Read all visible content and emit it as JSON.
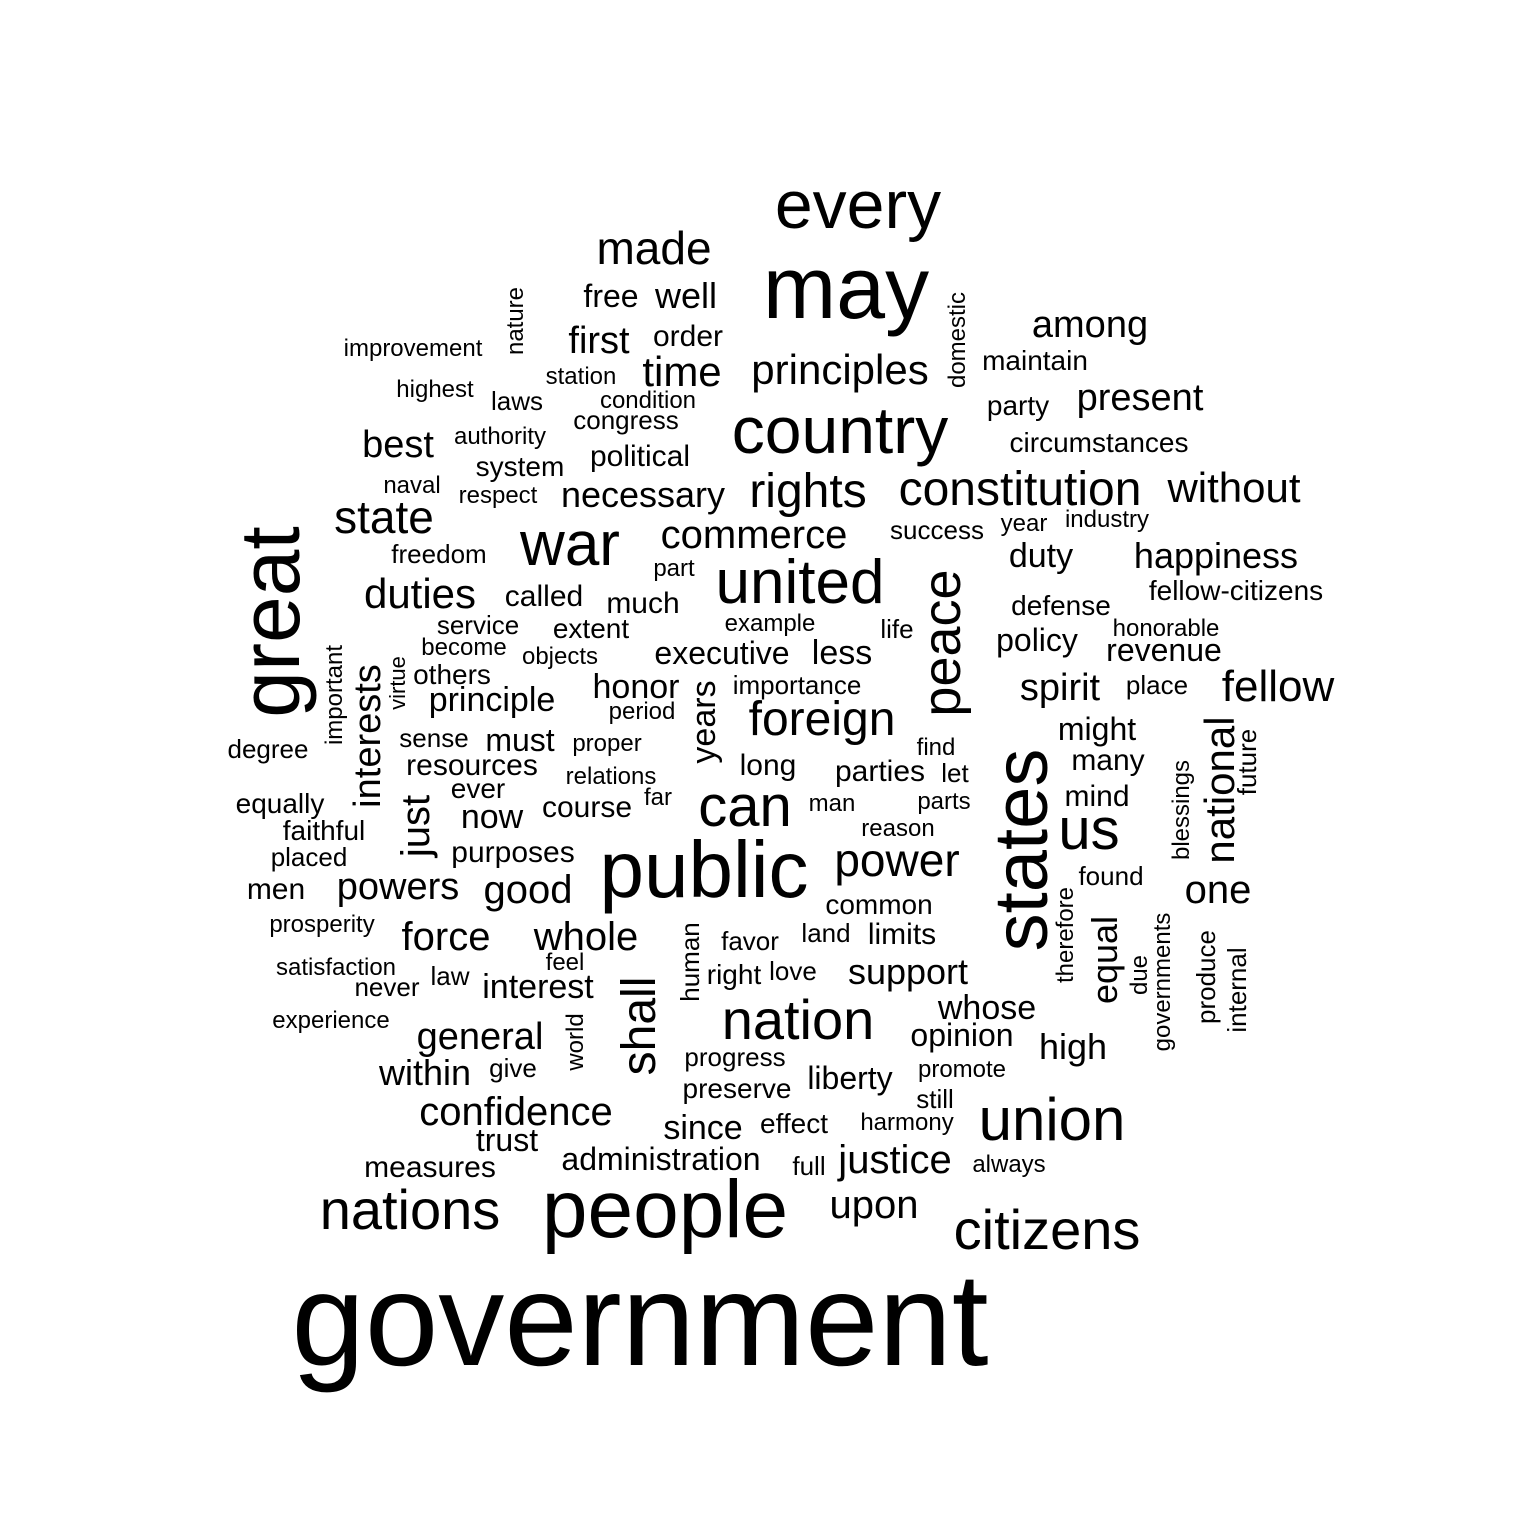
{
  "word_color": "#000000",
  "background": "#ffffff",
  "words": {
    "government": "government",
    "people": "people",
    "public": "public",
    "may": "may",
    "every": "every",
    "great": "great",
    "states": "states",
    "country": "country",
    "united": "united",
    "war": "war",
    "union": "union",
    "nation": "nation",
    "nations": "nations",
    "citizens": "citizens",
    "peace": "peace",
    "can": "can",
    "us": "us",
    "constitution": "constitution",
    "rights": "rights",
    "foreign": "foreign",
    "shall": "shall",
    "power": "power",
    "made": "made",
    "state": "state",
    "fellow": "fellow",
    "without": "without",
    "principles": "principles",
    "national": "national",
    "commerce": "commerce",
    "duties": "duties",
    "time": "time",
    "among": "among",
    "present": "present",
    "interests": "interests",
    "necessary": "necessary",
    "happiness": "happiness",
    "upon": "upon",
    "confidence": "confidence",
    "good": "good",
    "whole": "whole",
    "force": "force",
    "powers": "powers",
    "general": "general",
    "support": "support",
    "spirit": "spirit",
    "best": "best",
    "first": "first",
    "well": "well",
    "years": "years",
    "justice": "justice",
    "high": "high",
    "equal": "equal",
    "duty": "duty",
    "just": "just",
    "one": "one",
    "interest": "interest",
    "within": "within",
    "whose": "whose",
    "principle": "principle",
    "honor": "honor",
    "less": "less",
    "executive": "executive",
    "must": "must",
    "might": "might",
    "policy": "policy",
    "revenue": "revenue",
    "free": "free",
    "order": "order",
    "called": "called",
    "much": "much",
    "political": "political",
    "resources": "resources",
    "course": "course",
    "now": "now",
    "purposes": "purposes",
    "administration": "administration",
    "since": "since",
    "trust": "trust",
    "liberty": "liberty",
    "opinion": "opinion",
    "limits": "limits",
    "parties": "parties",
    "many": "many",
    "mind": "mind",
    "long": "long",
    "shall_alt": "",
    "measures": "measures",
    "improvement": "improvement",
    "nature": "nature",
    "station": "station",
    "highest": "highest",
    "laws": "laws",
    "condition": "condition",
    "congress": "congress",
    "domestic": "domestic",
    "maintain": "maintain",
    "party": "party",
    "circumstances": "circumstances",
    "authority": "authority",
    "system": "system",
    "naval": "naval",
    "respect": "respect",
    "success": "success",
    "year": "year",
    "industry": "industry",
    "freedom": "freedom",
    "part": "part",
    "fellow_citizens": "fellow-citizens",
    "defense": "defense",
    "honorable": "honorable",
    "service": "service",
    "extent": "extent",
    "example": "example",
    "life": "life",
    "become": "become",
    "objects": "objects",
    "important": "important",
    "virtue": "virtue",
    "others": "others",
    "importance": "importance",
    "place": "place",
    "period": "period",
    "degree": "degree",
    "sense": "sense",
    "proper": "proper",
    "find": "find",
    "future": "future",
    "relations": "relations",
    "let": "let",
    "ever": "ever",
    "far": "far",
    "equally": "equally",
    "man": "man",
    "parts": "parts",
    "blessings": "blessings",
    "faithful": "faithful",
    "reason": "reason",
    "placed": "placed",
    "men": "men",
    "found": "found",
    "therefore": "therefore",
    "common": "common",
    "prosperity": "prosperity",
    "human": "human",
    "favor": "favor",
    "land": "land",
    "governments": "governments",
    "produce": "produce",
    "internal": "internal",
    "satisfaction": "satisfaction",
    "feel": "feel",
    "law": "law",
    "never": "never",
    "right": "right",
    "love": "love",
    "due": "due",
    "experience": "experience",
    "world": "world",
    "progress": "progress",
    "give": "give",
    "preserve": "preserve",
    "promote": "promote",
    "still": "still",
    "effect": "effect",
    "harmony": "harmony",
    "full": "full",
    "always": "always"
  }
}
